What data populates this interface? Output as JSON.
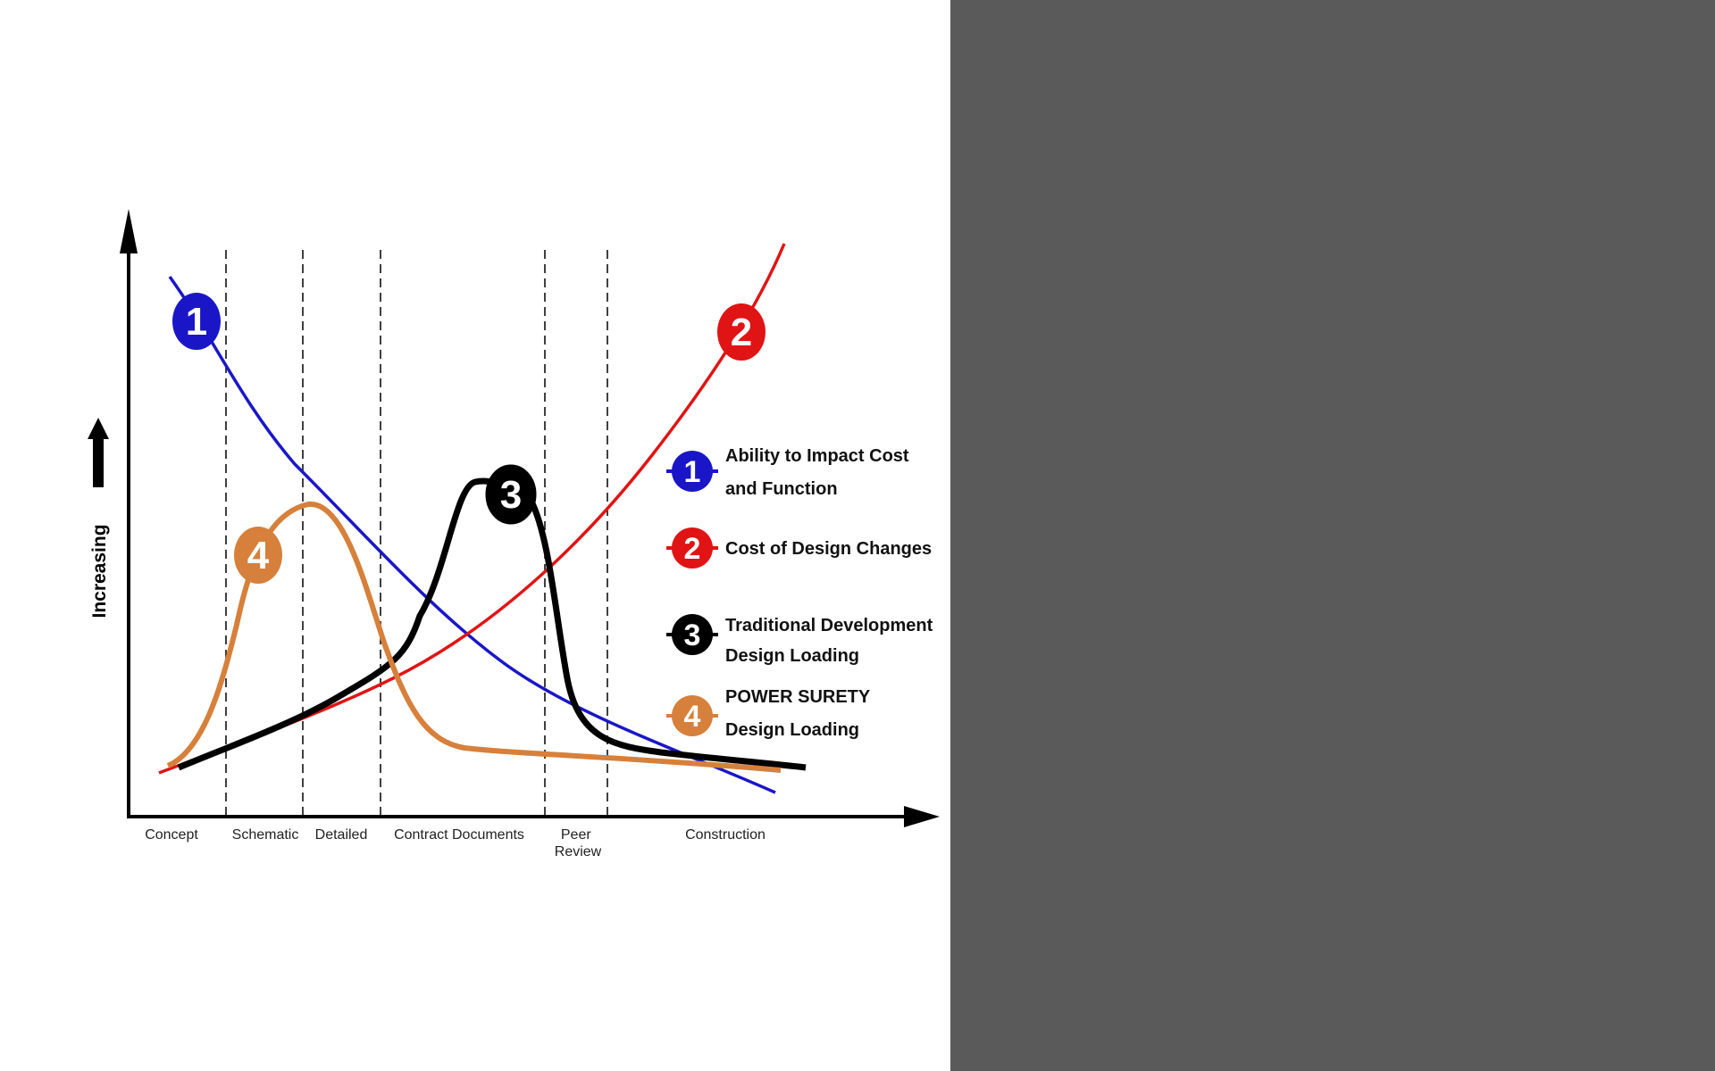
{
  "chart_data": {
    "type": "line",
    "ylabel": "Increasing",
    "categories": [
      "Concept",
      "Schematic",
      "Detailed",
      "Contract Documents",
      "Peer Review",
      "Construction"
    ],
    "series": [
      {
        "id": "1",
        "name": "Ability to Impact Cost and Function",
        "legend_lines": [
          "Ability to Impact Cost",
          "and Function"
        ],
        "color": "#1a16c8",
        "values": [
          95,
          78,
          61,
          40,
          25,
          4
        ]
      },
      {
        "id": "2",
        "name": "Cost of Design Changes",
        "legend_lines": [
          "Cost of Design Changes"
        ],
        "color": "#e01414",
        "values": [
          2,
          10,
          18,
          36,
          61,
          100
        ]
      },
      {
        "id": "3",
        "name": "Traditional Development Design Loading",
        "legend_lines": [
          "Traditional Development",
          "Design Loading"
        ],
        "color": "#000000",
        "values": [
          2,
          14,
          27,
          55,
          30,
          6
        ]
      },
      {
        "id": "4",
        "name": "POWER SURETY Design Loading",
        "legend_lines": [
          "POWER SURETY",
          "Design Loading"
        ],
        "color": "#d6803c",
        "values": [
          4,
          55,
          48,
          8,
          5,
          4
        ]
      }
    ],
    "grid": false,
    "legend_position": "right"
  }
}
